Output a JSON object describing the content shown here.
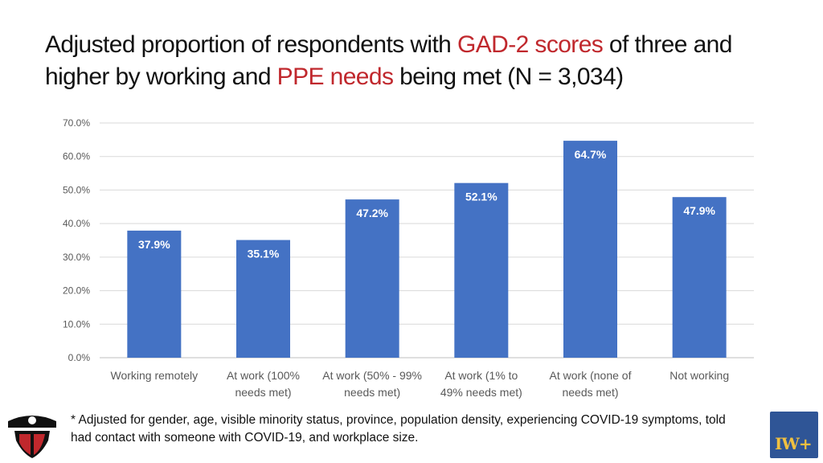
{
  "title": {
    "part1": "Adjusted proportion of respondents with ",
    "highlight1": "GAD-2 scores",
    "part2": " of three and higher by working and ",
    "highlight2": "PPE needs",
    "part3": " being met (N = 3,034)"
  },
  "colors": {
    "bar": "#4472c4",
    "highlight": "#c0282d",
    "grid": "#d9d9d9"
  },
  "chart_data": {
    "type": "bar",
    "title": "Adjusted proportion of respondents with GAD-2 scores of three and higher by working and PPE needs being met (N = 3,034)",
    "categories": [
      [
        "Working remotely"
      ],
      [
        "At work (100%",
        "needs met)"
      ],
      [
        "At work (50% - 99%",
        "needs met)"
      ],
      [
        "At work (1% to",
        "49% needs met)"
      ],
      [
        "At work (none of",
        "needs met)"
      ],
      [
        "Not working"
      ]
    ],
    "values": [
      37.9,
      35.1,
      47.2,
      52.1,
      64.7,
      47.9
    ],
    "data_labels": [
      "37.9%",
      "35.1%",
      "47.2%",
      "52.1%",
      "64.7%",
      "47.9%"
    ],
    "ylim": [
      0,
      70
    ],
    "yticks": [
      0,
      10,
      20,
      30,
      40,
      50,
      60,
      70
    ],
    "ytick_labels": [
      "0.0%",
      "10.0%",
      "20.0%",
      "30.0%",
      "40.0%",
      "50.0%",
      "60.0%",
      "70.0%"
    ],
    "xlabel": "",
    "ylabel": "",
    "grid": true
  },
  "footnote": "* Adjusted for gender, age, visible minority status, province, population density, experiencing COVID-19 symptoms, told had contact with someone with COVID-19, and workplace size.",
  "logo_right": {
    "text": "IW+",
    "icon": "iwh-logo-icon"
  },
  "logo_left": {
    "icon": "helmet-shield-logo-icon"
  }
}
